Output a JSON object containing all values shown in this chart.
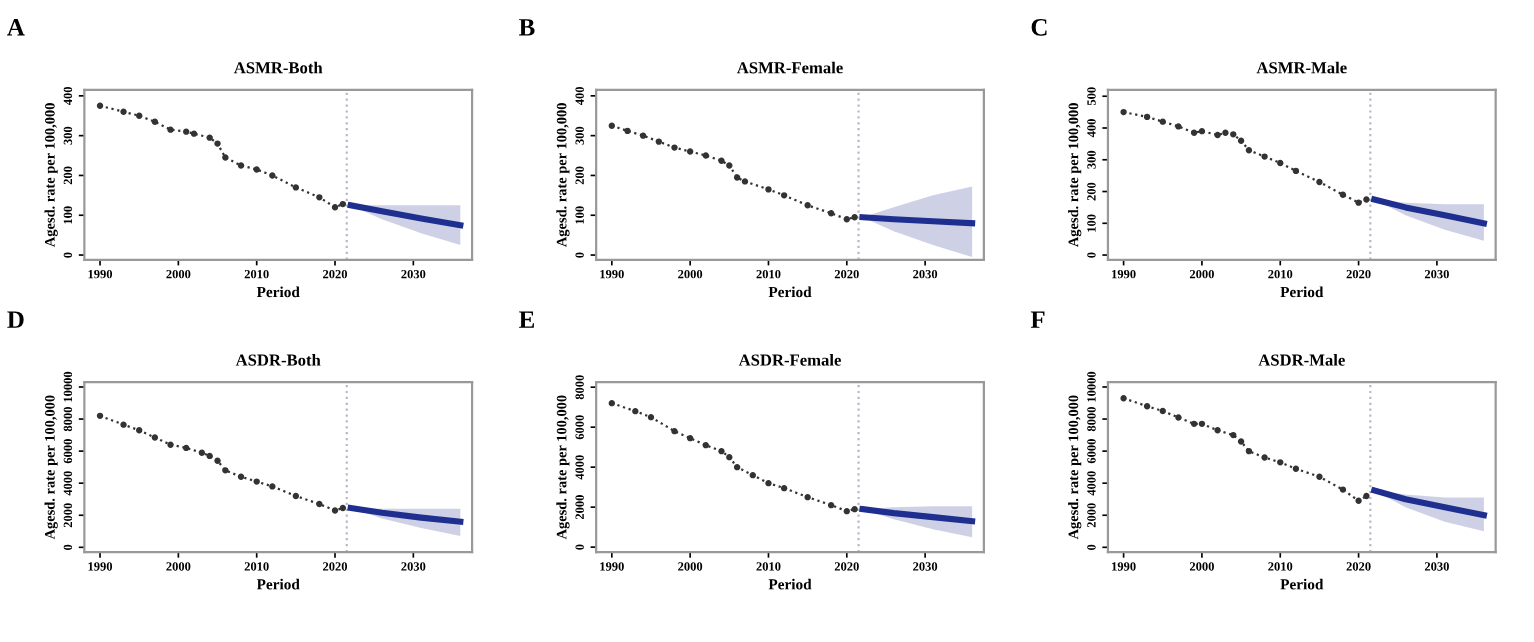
{
  "chart_data": [
    {
      "type": "line",
      "title": "ASMR-Both",
      "annotations": [
        "A"
      ],
      "xlabel": "Period",
      "ylabel": "Agesd. rate per 100,000",
      "xlim": [
        1988,
        2037.5
      ],
      "xticks": [
        1990,
        2000,
        2010,
        2020,
        2030
      ],
      "ylim": [
        -12,
        415
      ],
      "yticks": [
        0,
        100,
        200,
        300,
        400
      ],
      "grid": false,
      "legend": false,
      "ref_lines": [
        {
          "axis": "x",
          "value": 2021.5,
          "color": "#b8b8c8",
          "line_style": "dotted"
        }
      ],
      "series": [
        {
          "color": "#333333",
          "marker": "circle",
          "line_style": "dotted",
          "x": [
            1990,
            1993,
            1995,
            1997,
            1999,
            2001,
            2002,
            2004,
            2005,
            2006,
            2008,
            2010,
            2012,
            2015,
            2018,
            2020,
            2021
          ],
          "values": [
            375,
            360,
            350,
            335,
            315,
            310,
            305,
            295,
            280,
            245,
            225,
            215,
            200,
            170,
            145,
            120,
            128
          ]
        },
        {
          "color": "#1f2f8f",
          "marker": "none",
          "line_style": "solid",
          "x": [
            2022,
            2026,
            2031,
            2036
          ],
          "values": [
            125,
            110,
            92,
            75
          ],
          "lower": [
            125,
            90,
            55,
            25
          ],
          "upper": [
            125,
            125,
            125,
            125
          ]
        }
      ]
    },
    {
      "type": "line",
      "title": "ASMR-Female",
      "annotations": [
        "B"
      ],
      "xlabel": "Period",
      "ylabel": "Agesd. rate per 100,000",
      "xlim": [
        1988,
        2037.5
      ],
      "xticks": [
        1990,
        2000,
        2010,
        2020,
        2030
      ],
      "ylim": [
        -12,
        415
      ],
      "yticks": [
        0,
        100,
        200,
        300,
        400
      ],
      "grid": false,
      "legend": false,
      "ref_lines": [
        {
          "axis": "x",
          "value": 2021.5,
          "color": "#b8b8c8",
          "line_style": "dotted"
        }
      ],
      "series": [
        {
          "color": "#333333",
          "marker": "circle",
          "line_style": "dotted",
          "x": [
            1990,
            1992,
            1994,
            1996,
            1998,
            2000,
            2002,
            2004,
            2005,
            2006,
            2007,
            2010,
            2012,
            2015,
            2018,
            2020,
            2021
          ],
          "values": [
            325,
            312,
            300,
            285,
            270,
            260,
            250,
            237,
            225,
            195,
            185,
            165,
            150,
            125,
            105,
            90,
            95
          ]
        },
        {
          "color": "#1f2f8f",
          "marker": "none",
          "line_style": "solid",
          "x": [
            2022,
            2026,
            2031,
            2036
          ],
          "values": [
            95,
            90,
            85,
            80
          ],
          "lower": [
            95,
            60,
            25,
            -5
          ],
          "upper": [
            95,
            120,
            150,
            172
          ]
        }
      ]
    },
    {
      "type": "line",
      "title": "ASMR-Male",
      "annotations": [
        "C"
      ],
      "xlabel": "Period",
      "ylabel": "Agesd. rate per 100,000",
      "xlim": [
        1988,
        2037.5
      ],
      "xticks": [
        1990,
        2000,
        2010,
        2020,
        2030
      ],
      "ylim": [
        -15,
        520
      ],
      "yticks": [
        0,
        100,
        200,
        300,
        400,
        500
      ],
      "grid": false,
      "legend": false,
      "ref_lines": [
        {
          "axis": "x",
          "value": 2021.5,
          "color": "#b8b8c8",
          "line_style": "dotted"
        }
      ],
      "series": [
        {
          "color": "#333333",
          "marker": "circle",
          "line_style": "dotted",
          "x": [
            1990,
            1993,
            1995,
            1997,
            1999,
            2000,
            2002,
            2003,
            2004,
            2005,
            2006,
            2008,
            2010,
            2012,
            2015,
            2018,
            2020,
            2021
          ],
          "values": [
            450,
            435,
            420,
            405,
            385,
            390,
            378,
            385,
            380,
            360,
            330,
            310,
            290,
            265,
            230,
            190,
            165,
            175
          ]
        },
        {
          "color": "#1f2f8f",
          "marker": "none",
          "line_style": "solid",
          "x": [
            2022,
            2026,
            2031,
            2036
          ],
          "values": [
            175,
            150,
            125,
            100
          ],
          "lower": [
            175,
            125,
            80,
            45
          ],
          "upper": [
            175,
            165,
            160,
            160
          ]
        }
      ]
    },
    {
      "type": "line",
      "title": "ASDR-Both",
      "annotations": [
        "D"
      ],
      "xlabel": "Period",
      "ylabel": "Agesd. rate per 100,000",
      "xlim": [
        1988,
        2037.5
      ],
      "xticks": [
        1990,
        2000,
        2010,
        2020,
        2030
      ],
      "ylim": [
        -300,
        10300
      ],
      "yticks": [
        0,
        2000,
        4000,
        6000,
        8000,
        10000
      ],
      "grid": false,
      "legend": false,
      "ref_lines": [
        {
          "axis": "x",
          "value": 2021.5,
          "color": "#b8b8c8",
          "line_style": "dotted"
        }
      ],
      "series": [
        {
          "color": "#333333",
          "marker": "circle",
          "line_style": "dotted",
          "x": [
            1990,
            1993,
            1995,
            1997,
            1999,
            2001,
            2003,
            2004,
            2005,
            2006,
            2008,
            2010,
            2012,
            2015,
            2018,
            2020,
            2021
          ],
          "values": [
            8200,
            7650,
            7300,
            6850,
            6400,
            6200,
            5900,
            5700,
            5400,
            4800,
            4400,
            4100,
            3800,
            3200,
            2700,
            2300,
            2450
          ]
        },
        {
          "color": "#1f2f8f",
          "marker": "none",
          "line_style": "solid",
          "x": [
            2022,
            2026,
            2031,
            2036
          ],
          "values": [
            2450,
            2150,
            1850,
            1600
          ],
          "lower": [
            2450,
            1800,
            1200,
            700
          ],
          "upper": [
            2450,
            2400,
            2400,
            2400
          ]
        }
      ]
    },
    {
      "type": "line",
      "title": "ASDR-Female",
      "annotations": [
        "E"
      ],
      "xlabel": "Period",
      "ylabel": "Agesd. rate per 100,000",
      "xlim": [
        1988,
        2037.5
      ],
      "xticks": [
        1990,
        2000,
        2010,
        2020,
        2030
      ],
      "ylim": [
        -250,
        8250
      ],
      "yticks": [
        0,
        2000,
        4000,
        6000,
        8000
      ],
      "grid": false,
      "legend": false,
      "ref_lines": [
        {
          "axis": "x",
          "value": 2021.5,
          "color": "#b8b8c8",
          "line_style": "dotted"
        }
      ],
      "series": [
        {
          "color": "#333333",
          "marker": "circle",
          "line_style": "dotted",
          "x": [
            1990,
            1993,
            1995,
            1998,
            2000,
            2002,
            2004,
            2005,
            2006,
            2008,
            2010,
            2012,
            2015,
            2018,
            2020,
            2021
          ],
          "values": [
            7200,
            6800,
            6500,
            5800,
            5450,
            5100,
            4800,
            4500,
            4000,
            3600,
            3200,
            2950,
            2500,
            2100,
            1800,
            1900
          ]
        },
        {
          "color": "#1f2f8f",
          "marker": "none",
          "line_style": "solid",
          "x": [
            2022,
            2026,
            2031,
            2036
          ],
          "values": [
            1900,
            1700,
            1500,
            1300
          ],
          "lower": [
            1900,
            1400,
            900,
            500
          ],
          "upper": [
            1900,
            2000,
            2050,
            2050
          ]
        }
      ]
    },
    {
      "type": "line",
      "title": "ASDR-Male",
      "annotations": [
        "F"
      ],
      "xlabel": "Period",
      "ylabel": "Agesd. rate per 100,000",
      "xlim": [
        1988,
        2037.5
      ],
      "xticks": [
        1990,
        2000,
        2010,
        2020,
        2030
      ],
      "ylim": [
        -300,
        10300
      ],
      "yticks": [
        0,
        2000,
        4000,
        6000,
        8000,
        10000
      ],
      "grid": false,
      "legend": false,
      "ref_lines": [
        {
          "axis": "x",
          "value": 2021.5,
          "color": "#b8b8c8",
          "line_style": "dotted"
        }
      ],
      "series": [
        {
          "color": "#333333",
          "marker": "circle",
          "line_style": "dotted",
          "x": [
            1990,
            1993,
            1995,
            1997,
            1999,
            2000,
            2002,
            2004,
            2005,
            2006,
            2008,
            2010,
            2012,
            2015,
            2018,
            2020,
            2021
          ],
          "values": [
            9300,
            8800,
            8500,
            8100,
            7700,
            7700,
            7300,
            7000,
            6600,
            6000,
            5600,
            5300,
            4900,
            4400,
            3600,
            2900,
            3200
          ]
        },
        {
          "color": "#1f2f8f",
          "marker": "none",
          "line_style": "solid",
          "x": [
            2022,
            2026,
            2031,
            2036
          ],
          "values": [
            3550,
            3000,
            2500,
            2000
          ],
          "lower": [
            3550,
            2500,
            1600,
            1000
          ],
          "upper": [
            3550,
            3300,
            3100,
            3100
          ]
        }
      ]
    }
  ]
}
